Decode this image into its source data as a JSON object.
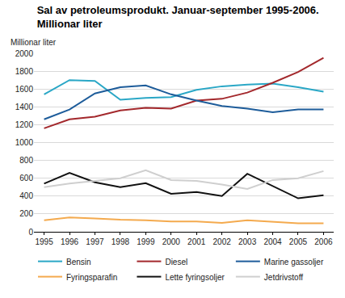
{
  "chart_data": {
    "type": "line",
    "title": "Sal av petroleumsprodukt. Januar-september 1995-2006. Millionar liter",
    "y_label": "Millionar liter",
    "x": [
      1995,
      1996,
      1997,
      1998,
      1999,
      2000,
      2001,
      2002,
      2003,
      2004,
      2005,
      2006
    ],
    "xlim": [
      1994.6,
      2006.4
    ],
    "xticks": [
      1995,
      1996,
      1997,
      1998,
      1999,
      2000,
      2001,
      2002,
      2003,
      2004,
      2005,
      2006
    ],
    "ylim": [
      0,
      2000
    ],
    "yticks": [
      0,
      200,
      400,
      600,
      800,
      1000,
      1200,
      1400,
      1600,
      1800,
      2000
    ],
    "grid": true,
    "legend": "bottom",
    "series": [
      {
        "name": "Bensin",
        "color": "#2aa7c6",
        "values": [
          1540,
          1700,
          1690,
          1480,
          1500,
          1510,
          1590,
          1630,
          1650,
          1660,
          1620,
          1570
        ]
      },
      {
        "name": "Diesel",
        "color": "#a3282c",
        "values": [
          1160,
          1260,
          1290,
          1360,
          1390,
          1380,
          1470,
          1490,
          1560,
          1670,
          1790,
          1950
        ]
      },
      {
        "name": "Marine gassoljer",
        "color": "#1d5c9a",
        "values": [
          1260,
          1370,
          1550,
          1620,
          1640,
          1540,
          1470,
          1410,
          1380,
          1340,
          1370,
          1370
        ]
      },
      {
        "name": "Fyringsparafin",
        "color": "#f4aa4e",
        "values": [
          130,
          160,
          150,
          135,
          130,
          115,
          115,
          100,
          130,
          110,
          95,
          95
        ]
      },
      {
        "name": "Lette fyringsoljer",
        "color": "#111111",
        "values": [
          540,
          660,
          555,
          500,
          545,
          425,
          445,
          400,
          650,
          510,
          375,
          410
        ]
      },
      {
        "name": "Jetdrivstoff",
        "color": "#cfcfcf",
        "values": [
          500,
          540,
          570,
          600,
          690,
          580,
          570,
          530,
          480,
          580,
          600,
          680
        ]
      }
    ]
  }
}
